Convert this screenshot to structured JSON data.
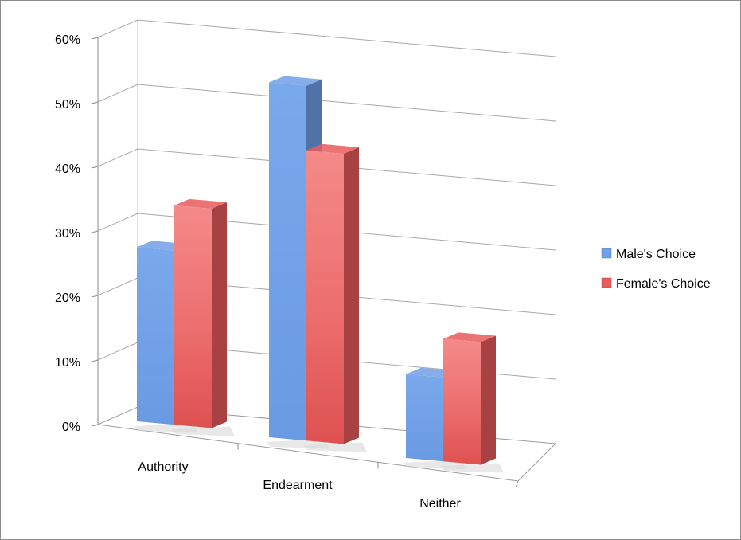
{
  "chart_data": {
    "type": "bar",
    "categories": [
      "Authority",
      "Endearment",
      "Neither"
    ],
    "series": [
      {
        "name": "Male's Choice",
        "values": [
          27,
          55,
          13
        ],
        "color": "#6f9fe6"
      },
      {
        "name": "Female's Choice",
        "values": [
          34,
          45,
          19
        ],
        "color": "#e95b5b"
      }
    ],
    "y_ticks": [
      "0%",
      "10%",
      "20%",
      "30%",
      "40%",
      "50%",
      "60%"
    ],
    "ylim": [
      0,
      60
    ],
    "grid": true,
    "legend_position": "right",
    "style": "3d-clustered-column"
  }
}
